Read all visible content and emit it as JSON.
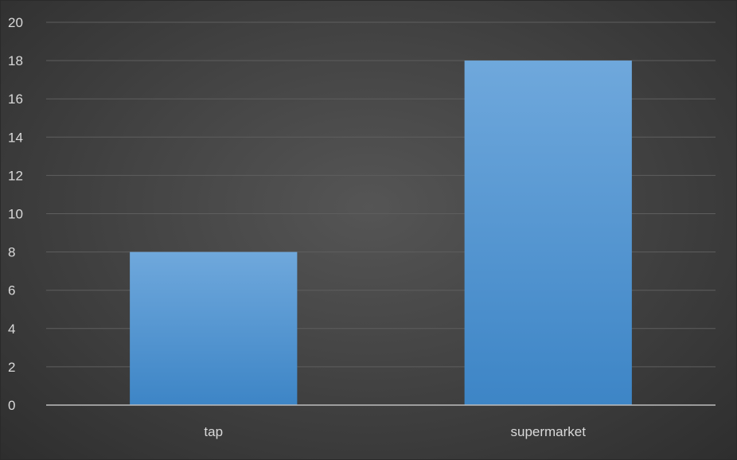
{
  "chart_data": {
    "type": "bar",
    "categories": [
      "tap",
      "supermarket"
    ],
    "values": [
      8,
      18
    ],
    "title": "",
    "xlabel": "",
    "ylabel": "",
    "ylim": [
      0,
      20
    ],
    "yticks": [
      0,
      2,
      4,
      6,
      8,
      10,
      12,
      14,
      16,
      18,
      20
    ],
    "grid": true,
    "legend": "none",
    "colors": {
      "bar_top": "#6fa8dc",
      "bar_bottom": "#3d85c6",
      "background": "#404040",
      "axis": "#bdbdbd",
      "gridline": "#5e5e5e",
      "text": "#d9d9d9"
    }
  }
}
